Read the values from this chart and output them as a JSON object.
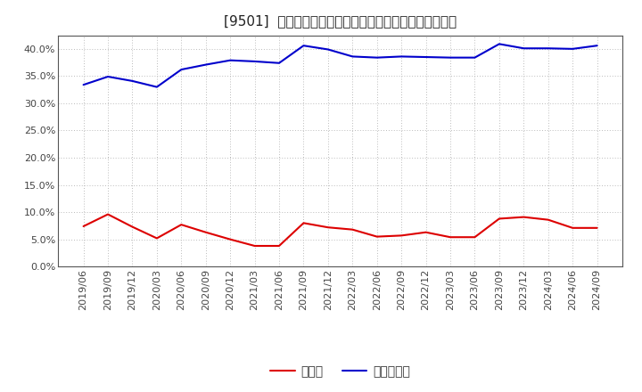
{
  "title": "[9501]  現預金、有利子負債の総資産に対する比率の推移",
  "x_labels": [
    "2019/06",
    "2019/09",
    "2019/12",
    "2020/03",
    "2020/06",
    "2020/09",
    "2020/12",
    "2021/03",
    "2021/06",
    "2021/09",
    "2021/12",
    "2022/03",
    "2022/06",
    "2022/09",
    "2022/12",
    "2023/03",
    "2023/06",
    "2023/09",
    "2023/12",
    "2024/03",
    "2024/06",
    "2024/09"
  ],
  "cash": [
    0.074,
    0.096,
    0.073,
    0.052,
    0.077,
    0.063,
    0.05,
    0.038,
    0.038,
    0.08,
    0.072,
    0.068,
    0.055,
    0.057,
    0.063,
    0.054,
    0.054,
    0.088,
    0.091,
    0.086,
    0.071,
    0.071
  ],
  "debt": [
    0.334,
    0.349,
    0.341,
    0.33,
    0.362,
    0.371,
    0.379,
    0.377,
    0.374,
    0.406,
    0.399,
    0.386,
    0.384,
    0.386,
    0.385,
    0.384,
    0.384,
    0.409,
    0.401,
    0.401,
    0.4,
    0.406
  ],
  "cash_color": "#dd0000",
  "debt_color": "#0000cc",
  "background_color": "#ffffff",
  "plot_bg_color": "#ffffff",
  "grid_color": "#bbbbbb",
  "legend_cash": "現預金",
  "legend_debt": "有利子負債",
  "ylim": [
    0.0,
    0.425
  ],
  "yticks": [
    0.0,
    0.05,
    0.1,
    0.15,
    0.2,
    0.25,
    0.3,
    0.35,
    0.4
  ],
  "title_fontsize": 11,
  "legend_fontsize": 10,
  "tick_fontsize": 8,
  "line_width": 1.5
}
